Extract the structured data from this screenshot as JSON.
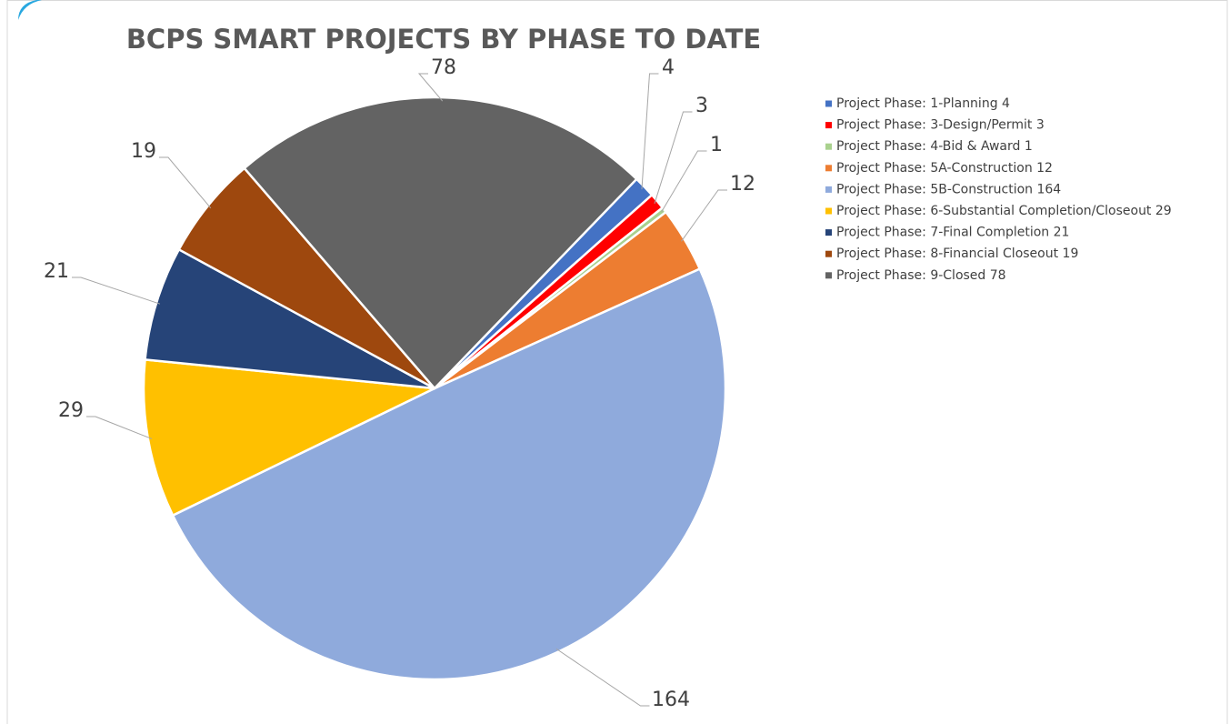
{
  "chart_data": {
    "type": "pie",
    "title": "BCPS SMART PROJECTS BY PHASE TO DATE",
    "categories": [
      "Project Phase: 1-Planning 4",
      "Project Phase: 3-Design/Permit 3",
      "Project Phase: 4-Bid & Award 1",
      "Project Phase: 5A-Construction 12",
      "Project Phase: 5B-Construction 164",
      "Project Phase: 6-Substantial Completion/Closeout 29",
      "Project Phase: 7-Final Completion 21",
      "Project Phase: 8-Financial Closeout 19",
      "Project Phase: 9-Closed 78"
    ],
    "values": [
      4,
      3,
      1,
      12,
      164,
      29,
      21,
      19,
      78
    ],
    "colors": [
      "#4472c4",
      "#ff0000",
      "#a9d18e",
      "#ed7d31",
      "#8faadc",
      "#ffc000",
      "#264478",
      "#9e480e",
      "#636363"
    ],
    "legend": "right"
  }
}
